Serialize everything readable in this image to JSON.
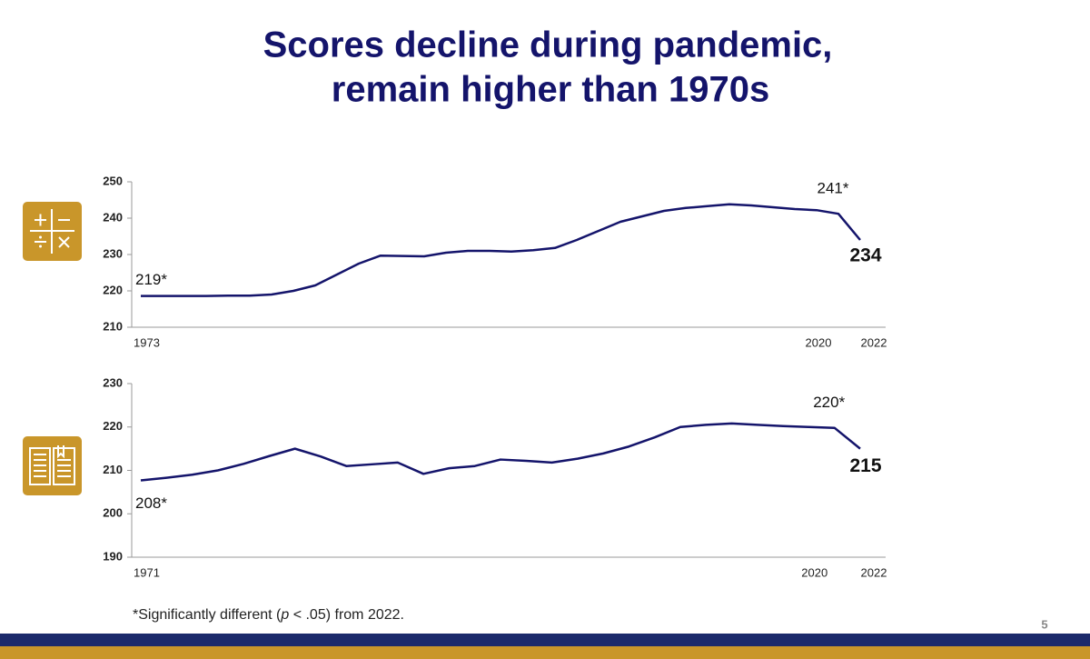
{
  "title": [
    "Scores decline during pandemic,",
    "remain higher than 1970s"
  ],
  "footnote": [
    "*Significantly different (",
    "p",
    " < .05) from 2022."
  ],
  "page_number": "5",
  "chart_data": [
    {
      "type": "line",
      "color": "#14146b",
      "categories": [
        "1973",
        null,
        null,
        null,
        null,
        null,
        null,
        null,
        null,
        null,
        null,
        null,
        null,
        null,
        null,
        null,
        null,
        null,
        null,
        null,
        null,
        null,
        null,
        null,
        null,
        null,
        null,
        null,
        null,
        null,
        null,
        null,
        "2020",
        "2022"
      ],
      "values": [
        218.6,
        218.6,
        218.6,
        218.6,
        218.7,
        218.7,
        219,
        220,
        221.5,
        224.5,
        227.5,
        229.7,
        229.6,
        229.5,
        230.5,
        231,
        231,
        230.8,
        231.2,
        231.8,
        234,
        236.5,
        239,
        240.5,
        242,
        242.8,
        243.3,
        243.8,
        243.5,
        243,
        242.5,
        242.2,
        241.2,
        234
      ],
      "value_labels": [
        "219*",
        null,
        null,
        null,
        null,
        null,
        null,
        null,
        null,
        null,
        null,
        null,
        null,
        null,
        null,
        null,
        null,
        null,
        null,
        null,
        null,
        null,
        null,
        null,
        null,
        null,
        null,
        null,
        null,
        null,
        null,
        null,
        "241*",
        "234"
      ],
      "ylim": [
        210,
        250
      ],
      "yticks": [
        210,
        220,
        230,
        240,
        250
      ]
    },
    {
      "type": "line",
      "color": "#14146b",
      "categories": [
        "1971",
        null,
        null,
        null,
        null,
        null,
        null,
        null,
        null,
        null,
        null,
        null,
        null,
        null,
        null,
        null,
        null,
        null,
        null,
        null,
        null,
        null,
        null,
        null,
        null,
        null,
        null,
        "2020",
        "2022"
      ],
      "values": [
        207.7,
        208.3,
        209,
        210,
        211.5,
        213.3,
        215,
        213.2,
        211,
        211.4,
        211.8,
        209.2,
        210.5,
        211,
        212.5,
        212.2,
        211.8,
        212.7,
        213.9,
        215.5,
        217.6,
        220,
        220.5,
        220.8,
        220.5,
        220.2,
        220,
        219.8,
        215
      ],
      "value_labels": [
        "208*",
        null,
        null,
        null,
        null,
        null,
        null,
        null,
        null,
        null,
        null,
        null,
        null,
        null,
        null,
        null,
        null,
        null,
        null,
        null,
        null,
        null,
        null,
        null,
        null,
        null,
        null,
        "220*",
        "215"
      ],
      "ylim": [
        190,
        230
      ],
      "yticks": [
        190,
        200,
        210,
        220,
        230
      ]
    }
  ]
}
